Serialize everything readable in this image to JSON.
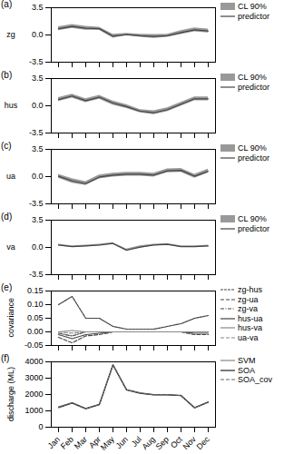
{
  "chart_data": [
    {
      "type": "line",
      "title": "(a)",
      "ylabel": "zg",
      "categories": [
        "Jan",
        "Feb",
        "Mar",
        "Apr",
        "May",
        "Jun",
        "Jul",
        "Aug",
        "Sep",
        "Oct",
        "Nov",
        "Dec"
      ],
      "series": [
        {
          "name": "CL 90%",
          "type": "area",
          "color": "#999999",
          "lower": [
            0.55,
            0.85,
            0.6,
            0.6,
            -0.4,
            -0.1,
            -0.3,
            -0.45,
            -0.3,
            0.05,
            0.4,
            0.25
          ],
          "upper": [
            1.05,
            1.35,
            1.1,
            1.0,
            0.1,
            0.2,
            0.1,
            0.05,
            0.1,
            0.55,
            0.9,
            0.75
          ]
        },
        {
          "name": "predictor",
          "type": "line",
          "color": "#444444",
          "line_style": "solid",
          "values": [
            0.8,
            1.1,
            0.85,
            0.8,
            -0.15,
            0.05,
            -0.1,
            -0.2,
            -0.1,
            0.3,
            0.65,
            0.5
          ]
        }
      ],
      "ylim": [
        -3.5,
        3.5
      ],
      "yticks": [
        -3.5,
        {
          "value": 0,
          "label": "0.0"
        },
        3.5
      ],
      "grid": false,
      "legend": "right",
      "tick_labels": "y"
    },
    {
      "type": "line",
      "title": "(b)",
      "ylabel": "hus",
      "categories": [
        "Jan",
        "Feb",
        "Mar",
        "Apr",
        "May",
        "Jun",
        "Jul",
        "Aug",
        "Sep",
        "Oct",
        "Nov",
        "Dec"
      ],
      "series": [
        {
          "name": "CL 90%",
          "type": "area",
          "color": "#999999",
          "lower": [
            0.55,
            1.0,
            0.4,
            0.85,
            0.1,
            -0.35,
            -0.9,
            -1.15,
            -0.75,
            -0.05,
            0.65,
            0.65
          ],
          "upper": [
            1.05,
            1.5,
            0.9,
            1.35,
            0.6,
            0.15,
            -0.5,
            -0.65,
            -0.25,
            0.45,
            1.15,
            1.15
          ]
        },
        {
          "name": "predictor",
          "type": "line",
          "color": "#444444",
          "line_style": "solid",
          "values": [
            0.8,
            1.25,
            0.65,
            1.1,
            0.35,
            -0.1,
            -0.7,
            -0.9,
            -0.5,
            0.2,
            0.9,
            0.9
          ]
        }
      ],
      "ylim": [
        -3.5,
        3.5
      ],
      "yticks": [
        -3.5,
        {
          "value": 0,
          "label": "0.0"
        },
        3.5
      ],
      "grid": false,
      "legend": "right",
      "tick_labels": "y"
    },
    {
      "type": "line",
      "title": "(c)",
      "ylabel": "ua",
      "categories": [
        "Jan",
        "Feb",
        "Mar",
        "Apr",
        "May",
        "Jun",
        "Jul",
        "Aug",
        "Sep",
        "Oct",
        "Nov",
        "Dec"
      ],
      "series": [
        {
          "name": "CL 90%",
          "type": "area",
          "color": "#999999",
          "lower": [
            -0.2,
            -0.85,
            -1.15,
            -0.3,
            -0.05,
            0.05,
            0.05,
            -0.05,
            0.5,
            0.55,
            -0.2,
            0.45
          ],
          "upper": [
            0.3,
            -0.25,
            -0.65,
            0.2,
            0.45,
            0.55,
            0.55,
            0.45,
            1.0,
            1.05,
            0.3,
            0.95
          ]
        },
        {
          "name": "predictor",
          "type": "line",
          "color": "#444444",
          "line_style": "solid",
          "values": [
            0.05,
            -0.55,
            -0.9,
            -0.05,
            0.2,
            0.3,
            0.3,
            0.2,
            0.75,
            0.8,
            0.05,
            0.7
          ]
        }
      ],
      "ylim": [
        -3.5,
        3.5
      ],
      "yticks": [
        -3.5,
        {
          "value": 0,
          "label": "0.0"
        },
        3.5
      ],
      "grid": false,
      "legend": "right",
      "tick_labels": "y"
    },
    {
      "type": "line",
      "title": "(d)",
      "ylabel": "va",
      "categories": [
        "Jan",
        "Feb",
        "Mar",
        "Apr",
        "May",
        "Jun",
        "Jul",
        "Aug",
        "Sep",
        "Oct",
        "Nov",
        "Dec"
      ],
      "series": [
        {
          "name": "CL 90%",
          "type": "area",
          "color": "#999999",
          "lower": [
            0.2,
            0.0,
            0.1,
            0.2,
            0.4,
            -0.5,
            -0.1,
            0.2,
            0.3,
            0.0,
            0.0,
            0.1
          ],
          "upper": [
            0.4,
            0.2,
            0.3,
            0.4,
            0.6,
            -0.2,
            0.2,
            0.4,
            0.5,
            0.2,
            0.2,
            0.3
          ]
        },
        {
          "name": "predictor",
          "type": "line",
          "color": "#444444",
          "line_style": "solid",
          "values": [
            0.3,
            0.1,
            0.2,
            0.3,
            0.5,
            -0.35,
            0.05,
            0.3,
            0.4,
            0.1,
            0.1,
            0.2
          ]
        }
      ],
      "ylim": [
        -3.5,
        3.5
      ],
      "yticks": [
        -3.5,
        {
          "value": 0,
          "label": "0.0"
        },
        3.5
      ],
      "grid": false,
      "legend": "right",
      "tick_labels": "y"
    },
    {
      "type": "line",
      "title": "(e)",
      "ylabel": "covariance",
      "categories": [
        "Jan",
        "Feb",
        "Mar",
        "Apr",
        "May",
        "Jun",
        "Jul",
        "Aug",
        "Sep",
        "Oct",
        "Nov",
        "Dec"
      ],
      "series": [
        {
          "name": "zg-hus",
          "color": "#444444",
          "line_style": "densely dashed",
          "values": [
            0.1,
            0.13,
            0.05,
            0.05,
            0.02,
            0.01,
            0.01,
            0.01,
            0.02,
            0.03,
            0.05,
            0.06
          ]
        },
        {
          "name": "zg-ua",
          "color": "#444444",
          "line_style": "dashed",
          "values": [
            -0.02,
            -0.04,
            -0.015,
            -0.01,
            0.0,
            0.0,
            0.0,
            0.0,
            0.0,
            0.0,
            -0.01,
            -0.01
          ]
        },
        {
          "name": "zg-va",
          "color": "#444444",
          "line_style": "dashdot",
          "values": [
            -0.005,
            -0.015,
            0.0,
            0.0,
            0.0,
            0.0,
            0.0,
            0.0,
            0.0,
            0.0,
            0.0,
            0.0
          ]
        },
        {
          "name": "hus-ua",
          "color": "#444444",
          "line_style": "solid",
          "values": [
            -0.01,
            -0.025,
            -0.01,
            -0.005,
            0.0,
            0.0,
            0.0,
            0.0,
            0.0,
            0.0,
            -0.005,
            -0.005
          ]
        },
        {
          "name": "hus-va",
          "color": "#888888",
          "line_style": "solid",
          "values": [
            0.0,
            0.005,
            0.0,
            0.0,
            0.0,
            0.0,
            0.0,
            0.0,
            0.0,
            0.0,
            0.0,
            0.0
          ]
        },
        {
          "name": "ua-va",
          "color": "#888888",
          "line_style": "dashed",
          "values": [
            0.0,
            -0.005,
            0.0,
            0.0,
            0.0,
            0.0,
            0.0,
            0.0,
            0.0,
            0.0,
            0.0,
            0.0
          ]
        }
      ],
      "ylim": [
        -0.05,
        0.15
      ],
      "yticks": [
        -0.05,
        {
          "value": 0,
          "label": "0.00"
        },
        0.05,
        {
          "value": 0.1,
          "label": "0.10"
        },
        0.15
      ],
      "grid": false,
      "legend": "right",
      "tick_labels": "y"
    },
    {
      "type": "line",
      "title": "(f)",
      "ylabel": "discharge (ML)",
      "categories": [
        "Jan",
        "Feb",
        "Mar",
        "Apr",
        "May",
        "Jun",
        "Jul",
        "Aug",
        "Sep",
        "Oct",
        "Nov",
        "Dec"
      ],
      "series": [
        {
          "name": "SVM",
          "color": "#888888",
          "line_style": "solid",
          "values": [
            1250,
            1500,
            1150,
            1400,
            3800,
            2300,
            2100,
            2000,
            2000,
            1950,
            1200,
            1550
          ]
        },
        {
          "name": "SOA",
          "color": "#222222",
          "line_style": "solid",
          "values": [
            1200,
            1480,
            1130,
            1380,
            3820,
            2280,
            2080,
            1980,
            1980,
            1930,
            1180,
            1530
          ]
        },
        {
          "name": "SOA_cov",
          "color": "#666666",
          "line_style": "dashed",
          "values": [
            1230,
            1490,
            1140,
            1390,
            3810,
            2290,
            2090,
            1990,
            1990,
            1940,
            1190,
            1540
          ]
        }
      ],
      "ylim": [
        0,
        4000
      ],
      "yticks": [
        0,
        1000,
        2000,
        3000,
        4000
      ],
      "grid": false,
      "legend": "right"
    }
  ]
}
